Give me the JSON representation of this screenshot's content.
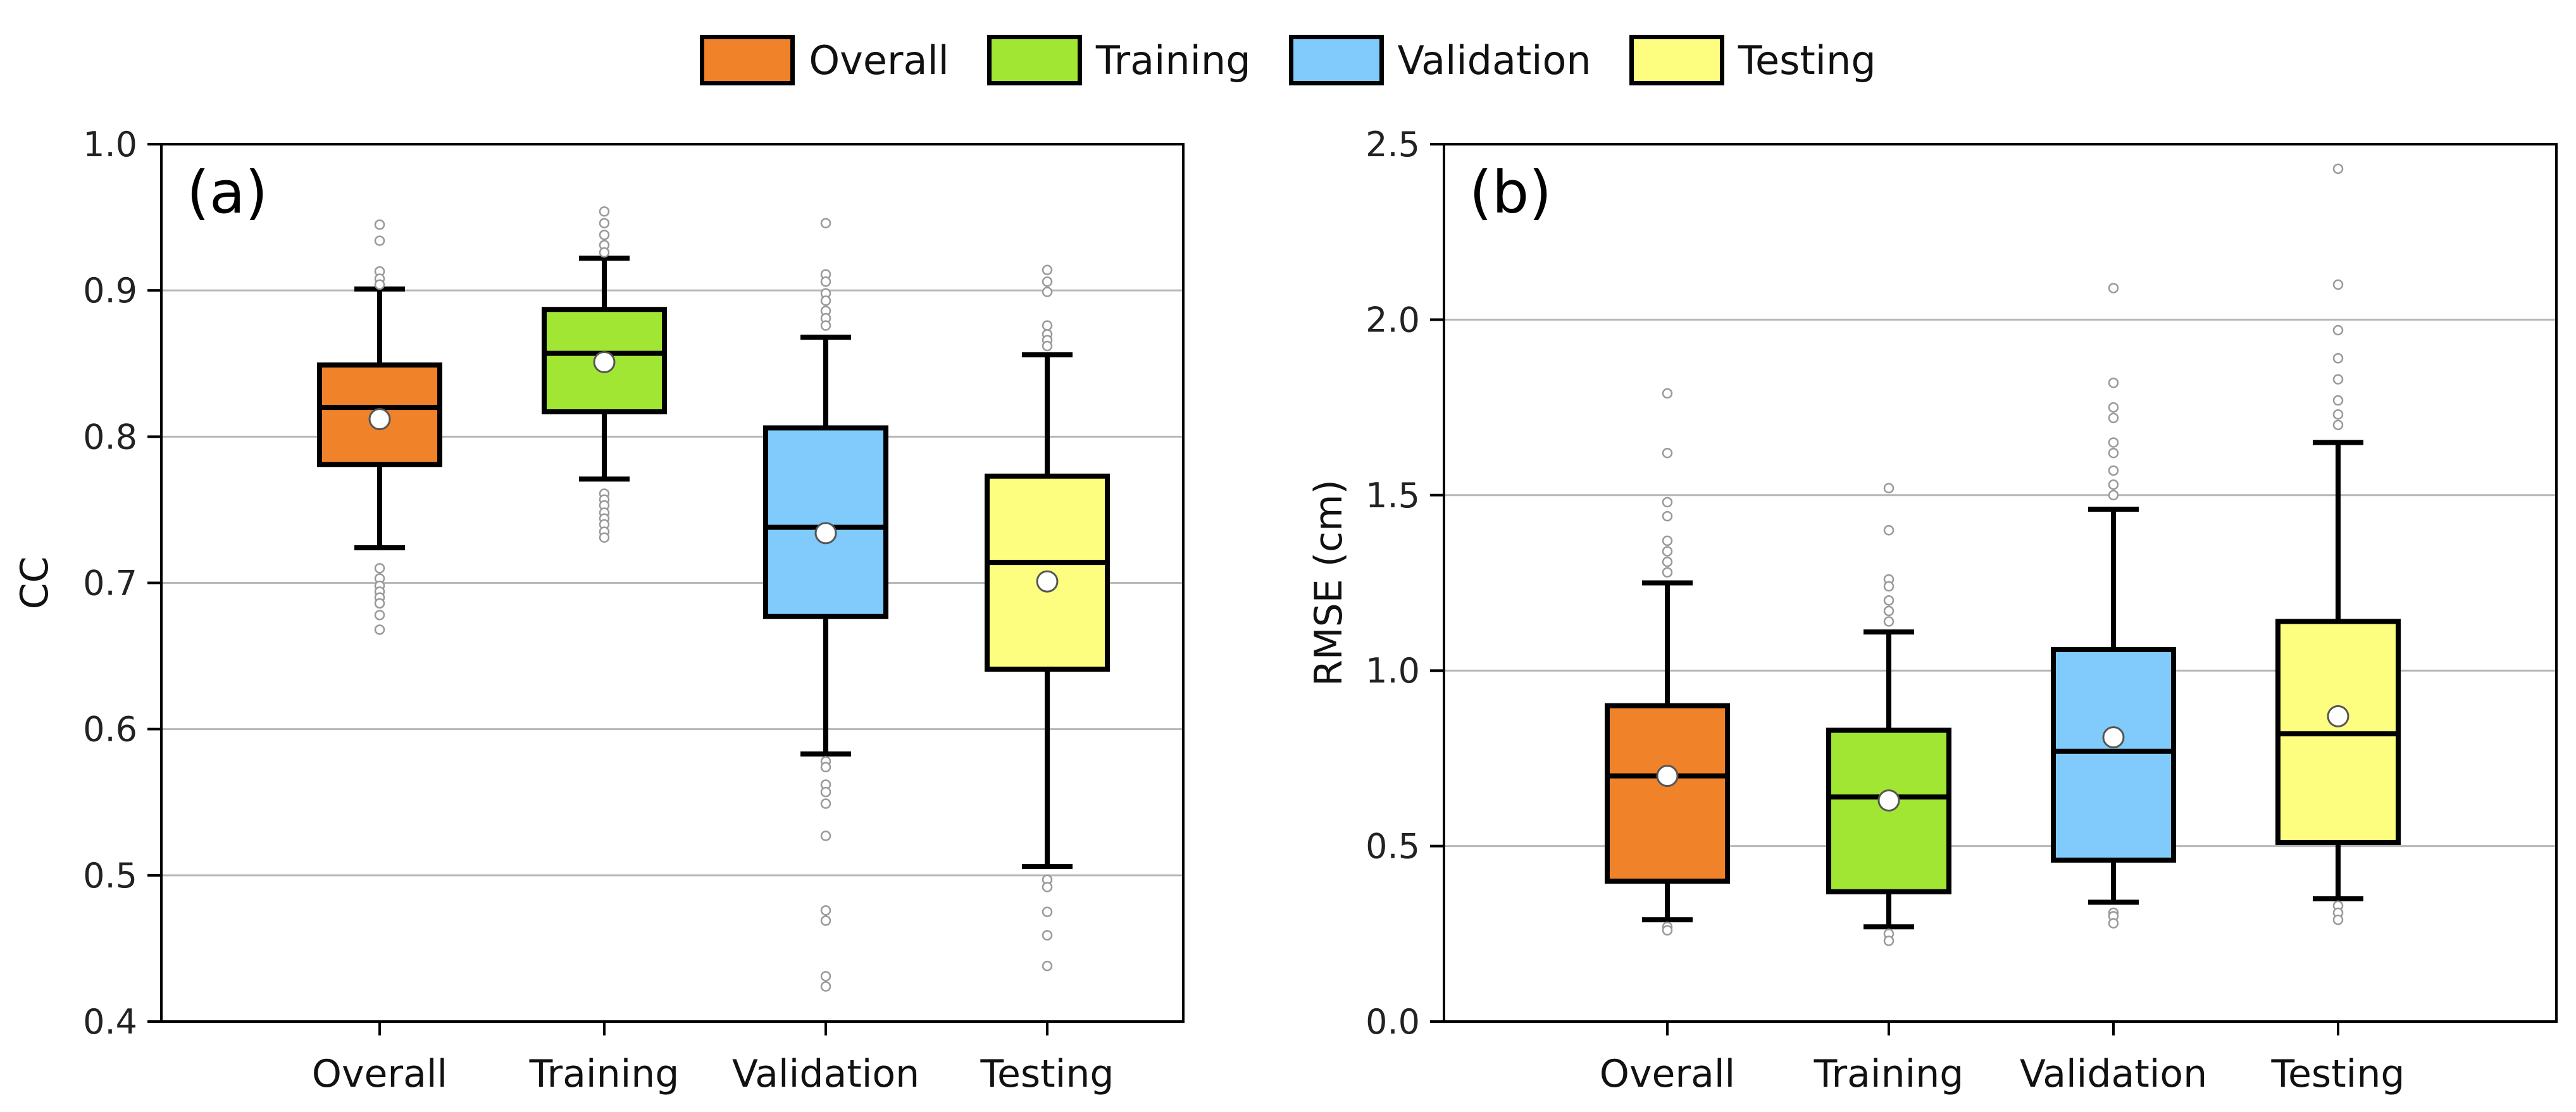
{
  "legend": {
    "entries": [
      {
        "label": "Overall",
        "color": "#f0822a"
      },
      {
        "label": "Training",
        "color": "#a2e634"
      },
      {
        "label": "Validation",
        "color": "#80cbfb"
      },
      {
        "label": "Testing",
        "color": "#fdfd80"
      }
    ]
  },
  "chart_data": [
    {
      "type": "box",
      "panel_label": "(a)",
      "title": "",
      "xlabel": "",
      "ylabel": "CC",
      "ylim": [
        0.4,
        1.0
      ],
      "yticks": [
        "0.4",
        "0.5",
        "0.6",
        "0.7",
        "0.8",
        "0.9",
        "1.0"
      ],
      "grid": true,
      "categories": [
        "Overall",
        "Training",
        "Validation",
        "Testing"
      ],
      "colors": [
        "#f0822a",
        "#a2e634",
        "#80cbfb",
        "#fdfd80"
      ],
      "boxes": [
        {
          "name": "Overall",
          "whisker_low": 0.724,
          "q1": 0.781,
          "median": 0.82,
          "q3": 0.849,
          "whisker_high": 0.901,
          "mean": 0.812,
          "outliers": [
            0.945,
            0.934,
            0.913,
            0.908,
            0.904,
            0.71,
            0.703,
            0.698,
            0.694,
            0.69,
            0.686,
            0.678,
            0.668
          ]
        },
        {
          "name": "Training",
          "whisker_low": 0.771,
          "q1": 0.817,
          "median": 0.857,
          "q3": 0.887,
          "whisker_high": 0.922,
          "mean": 0.851,
          "outliers": [
            0.954,
            0.946,
            0.938,
            0.931,
            0.926,
            0.761,
            0.757,
            0.753,
            0.748,
            0.744,
            0.74,
            0.735,
            0.731
          ]
        },
        {
          "name": "Validation",
          "whisker_low": 0.583,
          "q1": 0.677,
          "median": 0.738,
          "q3": 0.806,
          "whisker_high": 0.868,
          "mean": 0.734,
          "outliers": [
            0.946,
            0.911,
            0.906,
            0.898,
            0.893,
            0.886,
            0.881,
            0.876,
            0.578,
            0.574,
            0.562,
            0.557,
            0.549,
            0.527,
            0.476,
            0.469,
            0.431,
            0.424
          ]
        },
        {
          "name": "Testing",
          "whisker_low": 0.506,
          "q1": 0.641,
          "median": 0.714,
          "q3": 0.773,
          "whisker_high": 0.856,
          "mean": 0.701,
          "outliers": [
            0.914,
            0.906,
            0.899,
            0.876,
            0.87,
            0.866,
            0.862,
            0.497,
            0.492,
            0.475,
            0.459,
            0.438
          ]
        }
      ]
    },
    {
      "type": "box",
      "panel_label": "(b)",
      "title": "",
      "xlabel": "",
      "ylabel": "RMSE (cm)",
      "ylim": [
        0.0,
        2.5
      ],
      "yticks": [
        "0.0",
        "0.5",
        "1.0",
        "1.5",
        "2.0",
        "2.5"
      ],
      "grid": true,
      "categories": [
        "Overall",
        "Training",
        "Validation",
        "Testing"
      ],
      "colors": [
        "#f0822a",
        "#a2e634",
        "#80cbfb",
        "#fdfd80"
      ],
      "boxes": [
        {
          "name": "Overall",
          "whisker_low": 0.29,
          "q1": 0.4,
          "median": 0.7,
          "q3": 0.9,
          "whisker_high": 1.25,
          "mean": 0.7,
          "outliers": [
            1.79,
            1.62,
            1.48,
            1.44,
            1.37,
            1.34,
            1.31,
            1.28,
            0.27,
            0.26
          ]
        },
        {
          "name": "Training",
          "whisker_low": 0.27,
          "q1": 0.37,
          "median": 0.64,
          "q3": 0.83,
          "whisker_high": 1.11,
          "mean": 0.63,
          "outliers": [
            1.52,
            1.4,
            1.26,
            1.24,
            1.2,
            1.17,
            1.14,
            0.25,
            0.23
          ]
        },
        {
          "name": "Validation",
          "whisker_low": 0.34,
          "q1": 0.46,
          "median": 0.77,
          "q3": 1.06,
          "whisker_high": 1.46,
          "mean": 0.81,
          "outliers": [
            2.09,
            1.82,
            1.75,
            1.72,
            1.65,
            1.62,
            1.57,
            1.53,
            1.5,
            0.31,
            0.3,
            0.28
          ]
        },
        {
          "name": "Testing",
          "whisker_low": 0.35,
          "q1": 0.51,
          "median": 0.82,
          "q3": 1.14,
          "whisker_high": 1.65,
          "mean": 0.87,
          "outliers": [
            2.43,
            2.1,
            1.97,
            1.89,
            1.83,
            1.77,
            1.73,
            1.7,
            0.33,
            0.31,
            0.29
          ]
        }
      ]
    }
  ]
}
